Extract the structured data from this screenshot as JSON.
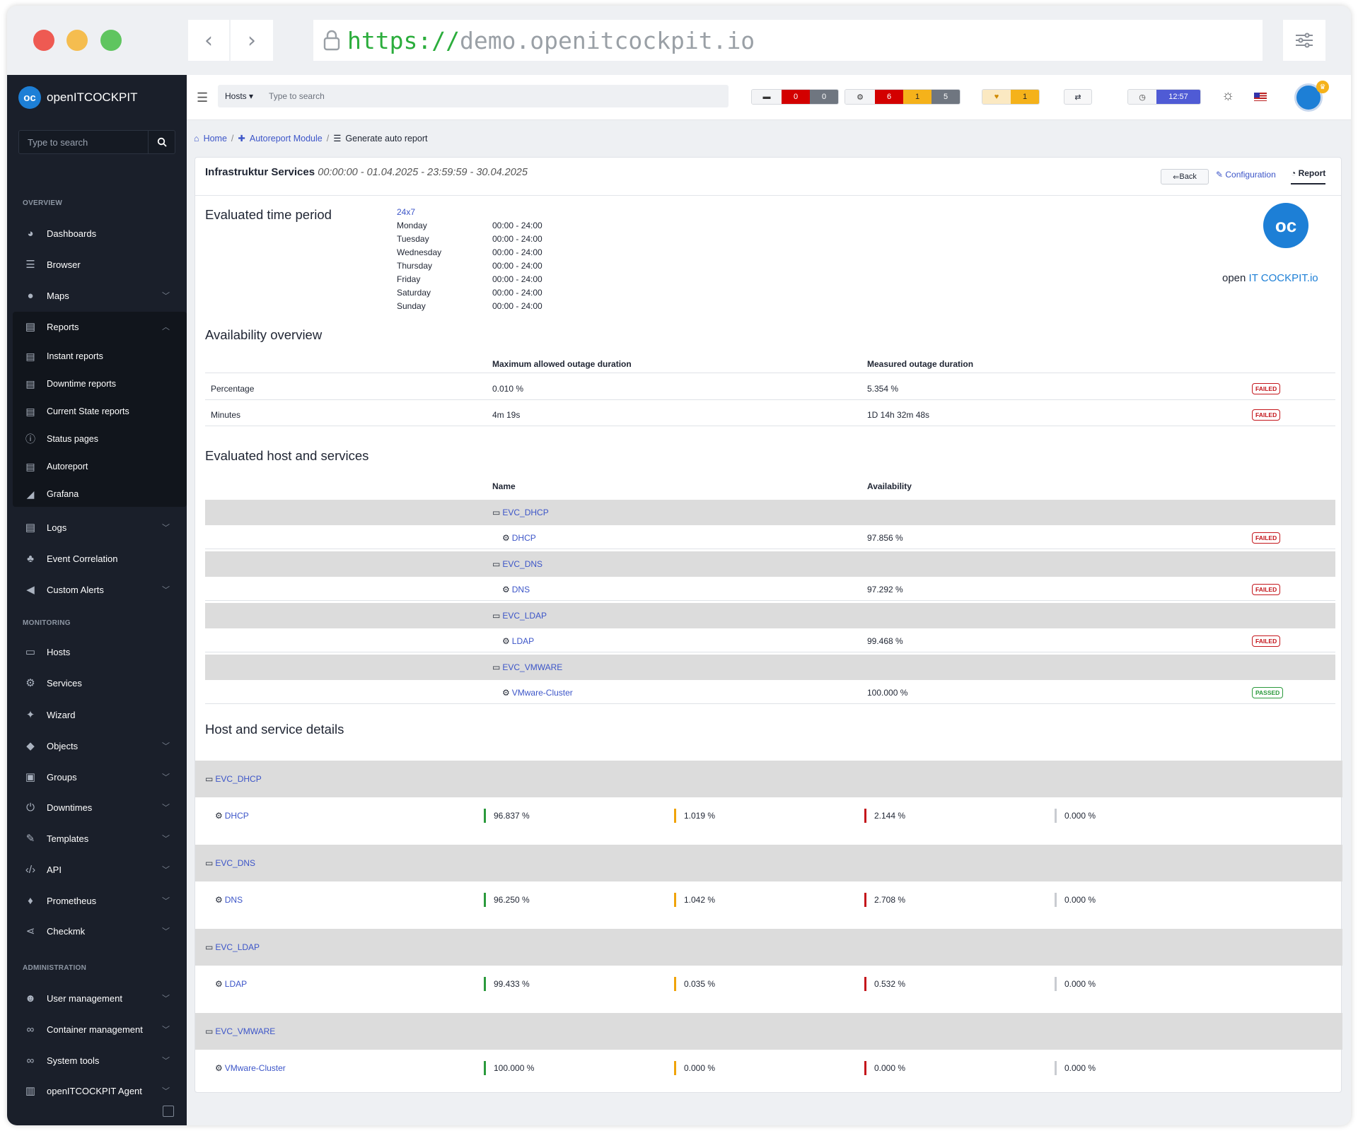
{
  "browser": {
    "url_scheme": "https://",
    "url_host": "demo.openitcockpit.io"
  },
  "sidebar": {
    "brand": "openITCOCKPIT",
    "search_placeholder": "Type to search",
    "sections": {
      "overview": "OVERVIEW",
      "monitoring": "MONITORING",
      "administration": "ADMINISTRATION"
    },
    "overview": [
      "Dashboards",
      "Browser",
      "Maps",
      "Reports"
    ],
    "reports_sub": [
      "Instant reports",
      "Downtime reports",
      "Current State reports",
      "Status pages",
      "Autoreport",
      "Grafana"
    ],
    "overview2": [
      "Logs",
      "Event Correlation",
      "Custom Alerts"
    ],
    "monitoring": [
      "Hosts",
      "Services",
      "Wizard",
      "Objects",
      "Groups",
      "Downtimes",
      "Templates",
      "API",
      "Prometheus",
      "Checkmk"
    ],
    "administration": [
      "User management",
      "Container management",
      "System tools",
      "openITCOCKPIT Agent"
    ]
  },
  "topbar": {
    "search_scope": "Hosts",
    "search_placeholder": "Type to search",
    "host_counts": [
      "0",
      "0"
    ],
    "service_counts": [
      "6",
      "1",
      "5"
    ],
    "ack_count": "1",
    "clock": "12:57"
  },
  "breadcrumb": {
    "home": "Home",
    "module": "Autoreport Module",
    "current": "Generate auto report"
  },
  "report": {
    "title": "Infrastruktur Services",
    "range": "00:00:00 - 01.04.2025 - 23:59:59 - 30.04.2025",
    "back": "Back",
    "configuration": "Configuration",
    "report_tab": "Report",
    "logo_open": "open ",
    "logo_it": "IT COCKPIT",
    "logo_io": ".io",
    "period_heading": "Evaluated time period",
    "timeperiod_name": "24x7",
    "days": [
      {
        "day": "Monday",
        "time": "00:00 - 24:00"
      },
      {
        "day": "Tuesday",
        "time": "00:00 - 24:00"
      },
      {
        "day": "Wednesday",
        "time": "00:00 - 24:00"
      },
      {
        "day": "Thursday",
        "time": "00:00 - 24:00"
      },
      {
        "day": "Friday",
        "time": "00:00 - 24:00"
      },
      {
        "day": "Saturday",
        "time": "00:00 - 24:00"
      },
      {
        "day": "Sunday",
        "time": "00:00 - 24:00"
      }
    ],
    "availability_heading": "Availability overview",
    "avail_cols": [
      "Maximum allowed outage duration",
      "Measured outage duration"
    ],
    "avail_rows": [
      {
        "label": "Percentage",
        "max": "0.010 %",
        "measured": "5.354 %",
        "status": "FAILED"
      },
      {
        "label": "Minutes",
        "max": "4m 19s",
        "measured": "1D 14h 32m 48s",
        "status": "FAILED"
      }
    ],
    "evaluated_heading": "Evaluated host and services",
    "eval_cols": [
      "Name",
      "Availability"
    ],
    "eval": [
      {
        "host": "EVC_DHCP",
        "service": "DHCP",
        "availability": "97.856 %",
        "status": "FAILED"
      },
      {
        "host": "EVC_DNS",
        "service": "DNS",
        "availability": "97.292 %",
        "status": "FAILED"
      },
      {
        "host": "EVC_LDAP",
        "service": "LDAP",
        "availability": "99.468 %",
        "status": "FAILED"
      },
      {
        "host": "EVC_VMWARE",
        "service": "VMware-Cluster",
        "availability": "100.000 %",
        "status": "PASSED"
      }
    ],
    "details_heading": "Host and service details",
    "details": [
      {
        "host": "EVC_DHCP",
        "service": "DHCP",
        "ok": "96.837 %",
        "warning": "1.019 %",
        "critical": "2.144 %",
        "unknown": "0.000 %"
      },
      {
        "host": "EVC_DNS",
        "service": "DNS",
        "ok": "96.250 %",
        "warning": "1.042 %",
        "critical": "2.708 %",
        "unknown": "0.000 %"
      },
      {
        "host": "EVC_LDAP",
        "service": "LDAP",
        "ok": "99.433 %",
        "warning": "0.035 %",
        "critical": "0.532 %",
        "unknown": "0.000 %"
      },
      {
        "host": "EVC_VMWARE",
        "service": "VMware-Cluster",
        "ok": "100.000 %",
        "warning": "0.000 %",
        "critical": "0.000 %",
        "unknown": "0.000 %"
      }
    ]
  },
  "colors": {
    "ok": "#2b9a3c",
    "warning": "#f0a30a",
    "critical": "#c4161c",
    "unknown": "#c9ccd1",
    "link": "#3c55c8"
  }
}
